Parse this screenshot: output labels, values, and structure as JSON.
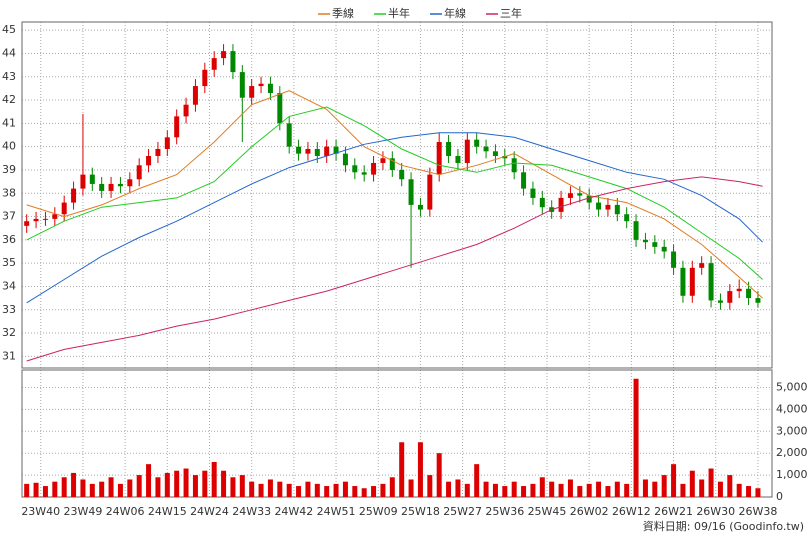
{
  "chart_data": [
    {
      "type": "candlestick",
      "xlim": [
        -4,
        156
      ],
      "xticks": [
        {
          "value": 0,
          "label": "23W40"
        },
        {
          "value": 9,
          "label": "23W49"
        },
        {
          "value": 18,
          "label": "24W06"
        },
        {
          "value": 27,
          "label": "24W15"
        },
        {
          "value": 36,
          "label": "24W24"
        },
        {
          "value": 45,
          "label": "24W33"
        },
        {
          "value": 54,
          "label": "24W42"
        },
        {
          "value": 63,
          "label": "24W51"
        },
        {
          "value": 72,
          "label": "25W09"
        },
        {
          "value": 81,
          "label": "25W18"
        },
        {
          "value": 90,
          "label": "25W27"
        },
        {
          "value": 99,
          "label": "25W36"
        },
        {
          "value": 108,
          "label": "25W45"
        },
        {
          "value": 117,
          "label": "26W02"
        },
        {
          "value": 126,
          "label": "26W12"
        },
        {
          "value": 135,
          "label": "26W21"
        },
        {
          "value": 144,
          "label": "26W30"
        },
        {
          "value": 153,
          "label": "26W38"
        }
      ],
      "ylim": [
        30.5,
        45.35
      ],
      "yticks": [
        31,
        32,
        33,
        34,
        35,
        36,
        37,
        38,
        39,
        40,
        41,
        42,
        43,
        44,
        45
      ],
      "grid": true,
      "up_color": "#dd0000",
      "down_color": "#008800",
      "candles": {
        "x": [
          -3,
          -1,
          1,
          3,
          5,
          7,
          9,
          11,
          13,
          15,
          17,
          19,
          21,
          23,
          25,
          27,
          29,
          31,
          33,
          35,
          37,
          39,
          41,
          43,
          45,
          47,
          49,
          51,
          53,
          55,
          57,
          59,
          61,
          63,
          65,
          67,
          69,
          71,
          73,
          75,
          77,
          79,
          81,
          83,
          85,
          87,
          89,
          91,
          93,
          95,
          97,
          99,
          101,
          103,
          105,
          107,
          109,
          111,
          113,
          115,
          117,
          119,
          121,
          123,
          125,
          127,
          129,
          131,
          133,
          135,
          137,
          139,
          141,
          143,
          145,
          147,
          149,
          151,
          153
        ],
        "open": [
          36.6,
          36.8,
          36.9,
          36.9,
          37.1,
          37.6,
          38.2,
          38.8,
          38.4,
          38.1,
          38.4,
          38.3,
          38.6,
          39.2,
          39.6,
          39.9,
          40.4,
          41.3,
          41.8,
          42.6,
          43.3,
          43.8,
          44.1,
          43.2,
          42.1,
          42.6,
          42.7,
          42.3,
          41.0,
          40.0,
          39.7,
          39.9,
          39.6,
          40.0,
          39.7,
          39.2,
          38.9,
          38.8,
          39.3,
          39.5,
          39.0,
          38.6,
          37.5,
          37.3,
          38.8,
          40.2,
          39.6,
          39.3,
          40.3,
          40.0,
          39.8,
          39.6,
          39.5,
          38.9,
          38.2,
          37.8,
          37.4,
          37.2,
          37.8,
          38.0,
          37.9,
          37.6,
          37.3,
          37.5,
          37.1,
          36.8,
          36.0,
          35.9,
          35.7,
          35.5,
          34.8,
          33.6,
          34.8,
          35.0,
          33.4,
          33.3,
          33.8,
          33.9,
          33.5
        ],
        "high": [
          37.1,
          37.2,
          37.2,
          37.4,
          37.9,
          38.5,
          41.4,
          39.1,
          38.7,
          38.7,
          38.7,
          38.9,
          39.5,
          39.9,
          40.2,
          40.7,
          41.6,
          42.1,
          42.9,
          43.6,
          44.1,
          44.4,
          44.4,
          43.5,
          42.9,
          43.0,
          43.0,
          42.6,
          41.3,
          40.3,
          40.2,
          40.2,
          40.3,
          40.3,
          40.0,
          39.5,
          39.2,
          39.6,
          39.8,
          39.8,
          39.3,
          38.9,
          37.8,
          39.1,
          40.6,
          40.5,
          39.9,
          40.6,
          40.6,
          40.3,
          40.1,
          39.9,
          39.8,
          39.2,
          38.5,
          38.1,
          37.7,
          38.1,
          38.3,
          38.3,
          38.2,
          37.9,
          37.8,
          37.8,
          37.4,
          37.1,
          36.3,
          36.2,
          36.0,
          35.8,
          35.1,
          35.1,
          35.3,
          35.3,
          33.7,
          34.1,
          34.3,
          34.2,
          33.8
        ],
        "low": [
          36.3,
          36.5,
          36.6,
          36.6,
          36.8,
          37.3,
          37.9,
          38.1,
          37.8,
          37.8,
          38.0,
          38.0,
          38.3,
          38.9,
          39.3,
          39.6,
          40.1,
          41.0,
          41.5,
          42.3,
          43.0,
          43.5,
          42.9,
          40.2,
          41.8,
          42.3,
          42.0,
          40.7,
          39.7,
          39.4,
          39.4,
          39.3,
          39.3,
          39.4,
          38.9,
          38.6,
          38.5,
          38.5,
          39.0,
          38.7,
          38.3,
          34.8,
          37.0,
          37.0,
          38.5,
          39.3,
          39.0,
          39.0,
          39.7,
          39.5,
          39.3,
          39.2,
          38.6,
          37.9,
          37.5,
          37.1,
          36.9,
          36.9,
          37.5,
          37.6,
          37.3,
          37.0,
          37.0,
          36.8,
          36.5,
          35.7,
          35.6,
          35.4,
          35.2,
          34.5,
          33.3,
          33.3,
          34.5,
          33.1,
          33.0,
          33.0,
          33.5,
          33.2,
          33.1
        ],
        "close": [
          36.8,
          36.9,
          36.9,
          37.1,
          37.6,
          38.2,
          38.8,
          38.4,
          38.1,
          38.4,
          38.3,
          38.6,
          39.2,
          39.6,
          39.9,
          40.4,
          41.3,
          41.8,
          42.6,
          43.3,
          43.8,
          44.1,
          43.2,
          42.1,
          42.6,
          42.7,
          42.3,
          41.0,
          40.0,
          39.7,
          39.9,
          39.6,
          40.0,
          39.7,
          39.2,
          38.9,
          38.8,
          39.3,
          39.5,
          39.0,
          38.6,
          37.5,
          37.3,
          38.8,
          40.2,
          39.6,
          39.3,
          40.3,
          40.0,
          39.8,
          39.6,
          39.5,
          38.9,
          38.2,
          37.8,
          37.4,
          37.2,
          37.8,
          38.0,
          37.9,
          37.6,
          37.3,
          37.5,
          37.1,
          36.8,
          36.0,
          35.9,
          35.7,
          35.5,
          34.8,
          33.6,
          34.8,
          35.0,
          33.4,
          33.3,
          33.8,
          33.9,
          33.5,
          33.3
        ]
      },
      "series": [
        {
          "name": "季線",
          "color": "#e07b20",
          "x": [
            -3,
            5,
            13,
            21,
            29,
            37,
            45,
            53,
            61,
            69,
            77,
            85,
            93,
            101,
            109,
            117,
            125,
            133,
            141,
            149,
            154
          ],
          "values": [
            37.5,
            37.0,
            37.5,
            38.2,
            38.8,
            40.2,
            41.8,
            42.4,
            41.6,
            40.0,
            39.2,
            38.8,
            39.2,
            39.7,
            38.8,
            37.9,
            37.6,
            36.9,
            35.8,
            34.4,
            33.5
          ]
        },
        {
          "name": "半年",
          "color": "#22cc22",
          "x": [
            -3,
            5,
            13,
            21,
            29,
            37,
            45,
            53,
            61,
            69,
            77,
            85,
            93,
            101,
            109,
            117,
            125,
            133,
            141,
            149,
            154
          ],
          "values": [
            36.0,
            36.8,
            37.4,
            37.6,
            37.8,
            38.5,
            40.0,
            41.3,
            41.7,
            40.9,
            39.9,
            39.2,
            38.9,
            39.3,
            39.2,
            38.7,
            38.2,
            37.4,
            36.3,
            35.2,
            34.3
          ]
        },
        {
          "name": "年線",
          "color": "#2266cc",
          "x": [
            -3,
            5,
            13,
            21,
            29,
            37,
            45,
            53,
            61,
            69,
            77,
            85,
            93,
            101,
            109,
            117,
            125,
            133,
            141,
            149,
            154
          ],
          "values": [
            33.3,
            34.3,
            35.3,
            36.1,
            36.8,
            37.6,
            38.4,
            39.1,
            39.6,
            40.1,
            40.4,
            40.6,
            40.6,
            40.4,
            39.9,
            39.4,
            38.9,
            38.6,
            37.9,
            36.9,
            35.9
          ]
        },
        {
          "name": "三年",
          "color": "#cc2266",
          "x": [
            -3,
            5,
            13,
            21,
            29,
            37,
            45,
            53,
            61,
            69,
            77,
            85,
            93,
            101,
            109,
            117,
            125,
            133,
            141,
            149,
            154
          ],
          "values": [
            30.8,
            31.3,
            31.6,
            31.9,
            32.3,
            32.6,
            33.0,
            33.4,
            33.8,
            34.3,
            34.8,
            35.3,
            35.8,
            36.5,
            37.3,
            37.8,
            38.2,
            38.5,
            38.7,
            38.5,
            38.3
          ]
        }
      ]
    },
    {
      "type": "bar",
      "color": "#dd0000",
      "ylim": [
        0,
        5800
      ],
      "yticks": [
        0,
        {
          "value": 1000,
          "label": "1,000"
        },
        {
          "value": 2000,
          "label": "2,000"
        },
        {
          "value": 3000,
          "label": "3,000"
        },
        {
          "value": 4000,
          "label": "4,000"
        },
        {
          "value": 5000,
          "label": "5,000"
        }
      ],
      "values": [
        600,
        650,
        500,
        700,
        900,
        1100,
        800,
        600,
        700,
        900,
        600,
        800,
        1000,
        1500,
        900,
        1100,
        1200,
        1300,
        1000,
        1200,
        1600,
        1200,
        900,
        1000,
        700,
        600,
        800,
        700,
        600,
        500,
        700,
        600,
        500,
        600,
        700,
        500,
        400,
        500,
        600,
        900,
        2500,
        800,
        2500,
        1000,
        2000,
        700,
        800,
        600,
        1500,
        700,
        600,
        500,
        700,
        500,
        600,
        900,
        700,
        600,
        800,
        500,
        600,
        700,
        500,
        700,
        600,
        5400,
        800,
        700,
        1000,
        1500,
        600,
        1200,
        800,
        1300,
        700,
        1000,
        600,
        500,
        400
      ],
      "footnote": "資料日期: 09/16  (Goodinfo.tw)"
    }
  ]
}
